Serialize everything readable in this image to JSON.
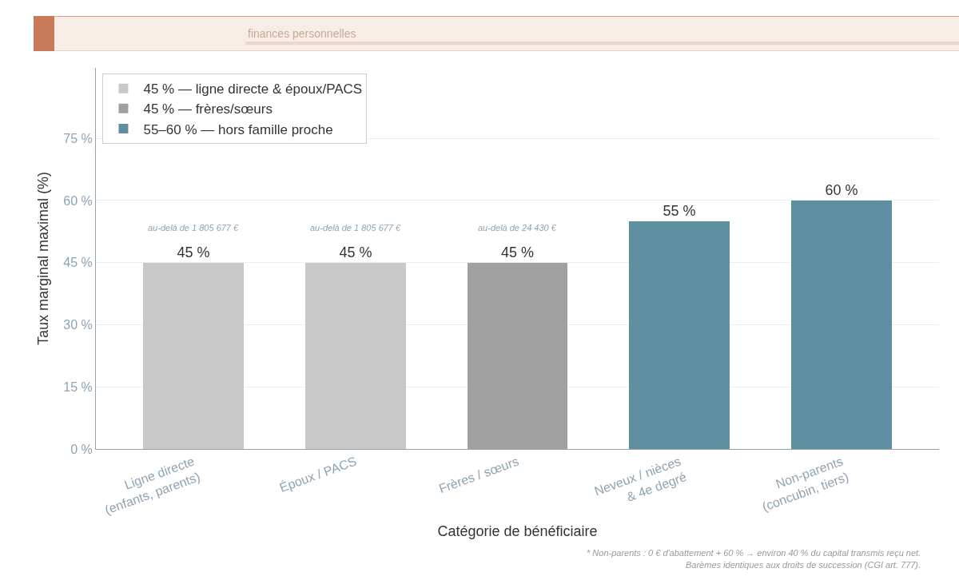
{
  "chart_data": {
    "type": "bar",
    "subtitle": "finances personnelles",
    "categories": [
      "Ligne directe\n(enfants, parents)",
      "Époux / PACS",
      "Frères / sœurs",
      "Neveux / nièces\n& 4e degré",
      "Non-parents\n(concubin, tiers)"
    ],
    "series": [
      {
        "name": "45 % — ligne directe & époux/PACS",
        "color": "#c8c8c8",
        "values": [
          45,
          45,
          null,
          null,
          null
        ],
        "value_labels": [
          "45 %",
          "45 %",
          null,
          null,
          null
        ]
      },
      {
        "name": "45 % — frères/sœurs",
        "color": "#a0a0a0",
        "values": [
          null,
          null,
          45,
          null,
          null
        ],
        "value_labels": [
          null,
          null,
          "45 %",
          null,
          null
        ]
      },
      {
        "name": "55–60 % — hors famille proche",
        "color": "#5e8fa0",
        "values": [
          null,
          null,
          null,
          55,
          60
        ],
        "value_labels": [
          null,
          null,
          null,
          "55 %",
          "60 %"
        ]
      }
    ],
    "xlabel": "Catégorie de bénéficiaire",
    "ylabel": "Taux marginal maximal (%)",
    "ylim": [
      0,
      92
    ],
    "yticks": [
      {
        "value": 0,
        "label": "0 %"
      },
      {
        "value": 15,
        "label": "15 %"
      },
      {
        "value": 30,
        "label": "30 %"
      },
      {
        "value": 45,
        "label": "45 %"
      },
      {
        "value": 60,
        "label": "60 %"
      },
      {
        "value": 75,
        "label": "75 %"
      }
    ],
    "grid": "y",
    "legend": "top left",
    "annotations": [
      "au-delà de 1 805 677 €",
      "au-delà de 1 805 677 €",
      "au-delà de 24 430 €",
      "* Non-parents : 0 € d'abattement + 60 % → environ 40 % du capital transmis reçu net.",
      "Barèmes identiques aux droits de succession (CGI art. 777)."
    ]
  }
}
